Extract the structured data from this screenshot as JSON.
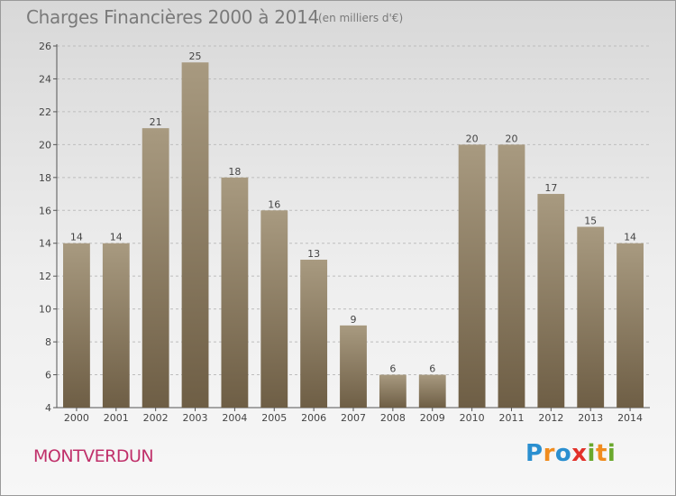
{
  "title": "Charges Financières 2000 à 2014",
  "subtitle": "(en milliers d'€)",
  "commune": "MONTVERDUN",
  "logo": {
    "letters": [
      "P",
      "r",
      "o",
      "x",
      "i",
      "t",
      "i"
    ],
    "colors": [
      "#2a8fd0",
      "#f08c1e",
      "#2a8fd0",
      "#e2312a",
      "#6aa82c",
      "#f08c1e",
      "#6aa82c"
    ]
  },
  "colors": {
    "bar_top": "#a89a80",
    "bar_bottom": "#6e5e45",
    "commune": "#c0306a"
  },
  "chart_data": {
    "type": "bar",
    "categories": [
      "2000",
      "2001",
      "2002",
      "2003",
      "2004",
      "2005",
      "2006",
      "2007",
      "2008",
      "2009",
      "2010",
      "2011",
      "2012",
      "2013",
      "2014"
    ],
    "values": [
      14,
      14,
      21,
      25,
      18,
      16,
      13,
      9,
      6,
      6,
      20,
      20,
      17,
      15,
      14
    ],
    "ylim": [
      4,
      26
    ],
    "yticks": [
      4,
      6,
      8,
      10,
      12,
      14,
      16,
      18,
      20,
      22,
      24,
      26
    ],
    "grid": true,
    "data_labels": true
  }
}
